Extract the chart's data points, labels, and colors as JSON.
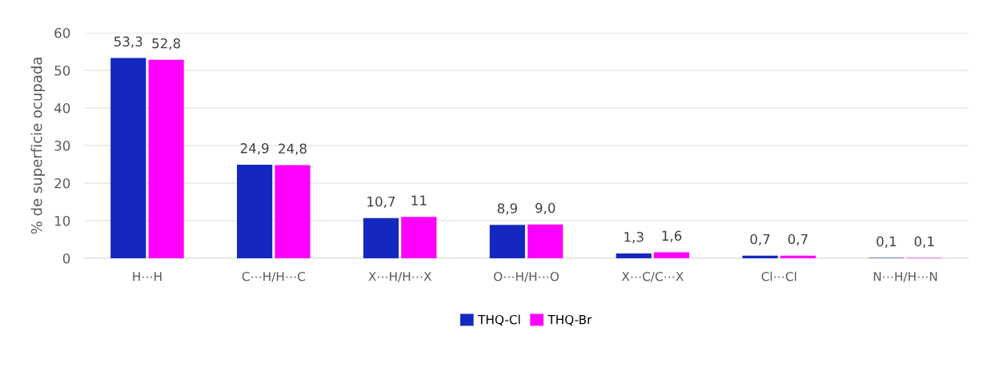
{
  "chart_data": {
    "type": "bar",
    "ylabel": "% de superficie ocupada",
    "categories": [
      "H⋯H",
      "C⋯H/H⋯C",
      "X⋯H/H⋯X",
      "O⋯H/H⋯O",
      "X⋯C/C⋯X",
      "Cl⋯Cl",
      "N⋯H/H⋯N"
    ],
    "series": [
      {
        "name": "THQ-Cl",
        "color": "#1428c0",
        "values": [
          53.3,
          24.9,
          10.7,
          8.9,
          1.3,
          0.7,
          0.1
        ],
        "value_labels": [
          "53,3",
          "24,9",
          "10,7",
          "8,9",
          "1,3",
          "0,7",
          "0,1"
        ]
      },
      {
        "name": "THQ-Br",
        "color": "#ff00ff",
        "values": [
          52.8,
          24.8,
          11,
          9.0,
          1.6,
          0.7,
          0.1
        ],
        "value_labels": [
          "52,8",
          "24,8",
          "11",
          "9,0",
          "1,6",
          "0,7",
          "0,1"
        ]
      }
    ],
    "ylim": [
      0,
      60
    ],
    "yticks": [
      0,
      10,
      20,
      30,
      40,
      50,
      60
    ],
    "grid": "y",
    "legend": "bottom"
  }
}
